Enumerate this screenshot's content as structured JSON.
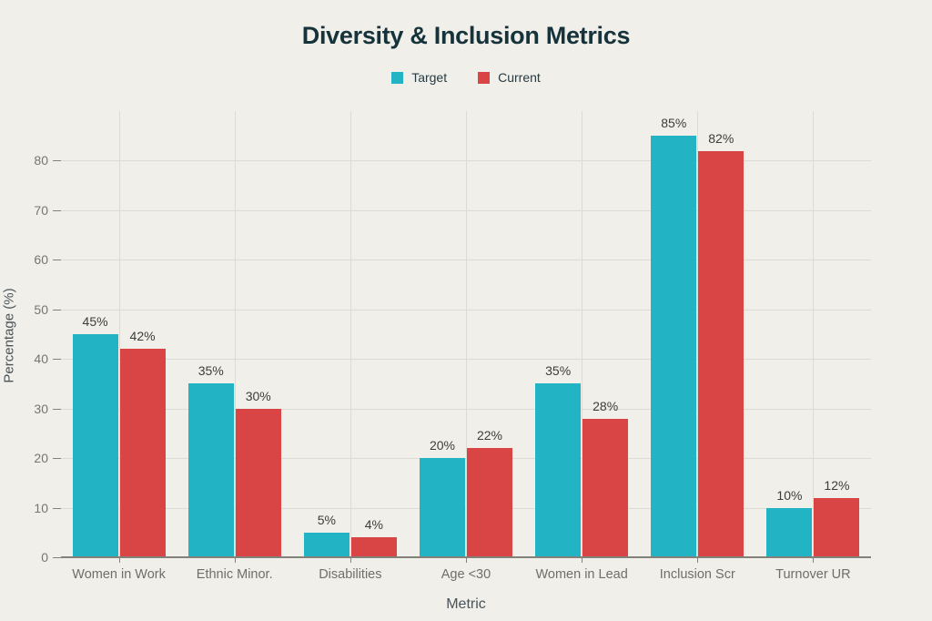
{
  "title": "Diversity & Inclusion Metrics",
  "chart_data": {
    "type": "bar",
    "title": "Diversity & Inclusion Metrics",
    "xlabel": "Metric",
    "ylabel": "Percentage (%)",
    "categories": [
      "Women in Work",
      "Ethnic Minor.",
      "Disabilities",
      "Age <30",
      "Women in Lead",
      "Inclusion Scr",
      "Turnover UR"
    ],
    "series": [
      {
        "name": "Target",
        "color": "#22b4c5",
        "values": [
          45,
          35,
          5,
          20,
          35,
          85,
          10
        ]
      },
      {
        "name": "Current",
        "color": "#d94545",
        "values": [
          42,
          30,
          4,
          22,
          28,
          82,
          12
        ]
      }
    ],
    "value_suffix": "%",
    "ylim": [
      0,
      90
    ],
    "yticks": [
      0,
      10,
      20,
      30,
      40,
      50,
      60,
      70,
      80
    ],
    "grid": true,
    "legend_position": "top"
  },
  "colors": {
    "background": "#f0efe9",
    "title_text": "#16333c",
    "legend_text": "#273b44",
    "axis_title_text": "#49535a",
    "tick_label_text": "#76766f",
    "category_label_text": "#6f6f6a",
    "value_label_text": "#3c3c3c",
    "gridline": "#dddcd4",
    "axis_line": "#82827b"
  }
}
